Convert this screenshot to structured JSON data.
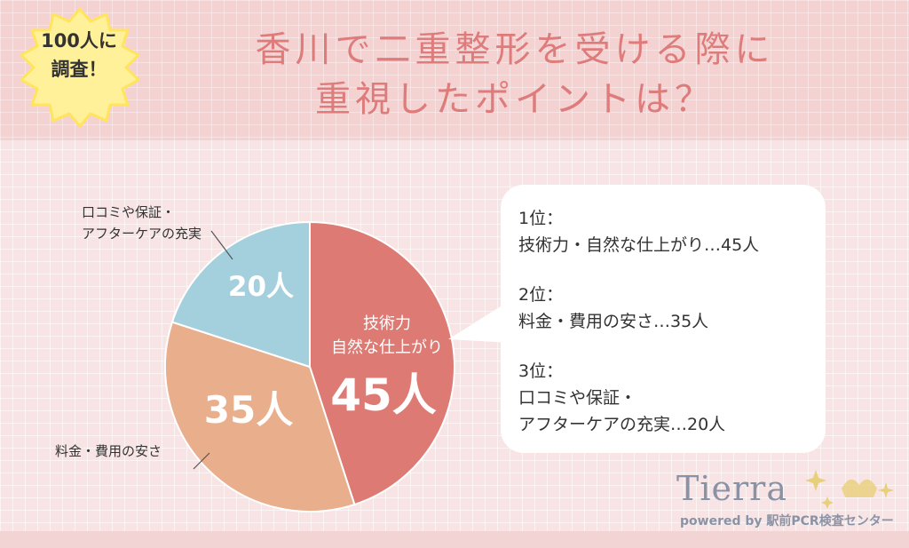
{
  "badge": {
    "line1": "100人に",
    "line2": "調査！"
  },
  "title": {
    "line1": "香川で二重整形を受ける際に",
    "line2": "重視したポイントは？"
  },
  "chart_data": {
    "type": "pie",
    "total": 100,
    "slices": [
      {
        "label": "技術力・自然な仕上がり",
        "value": 45,
        "value_label": "45人",
        "inner_label_1": "技術力",
        "inner_label_2": "自然な仕上がり",
        "color": "#dd7a74"
      },
      {
        "label": "料金・費用の安さ",
        "value": 35,
        "value_label": "35人",
        "outer_label": "料金・費用の安さ",
        "color": "#e9ae8c"
      },
      {
        "label": "口コミや保証・アフターケアの充実",
        "value": 20,
        "value_label": "20人",
        "outer_label_1": "口コミや保証・",
        "outer_label_2": "アフターケアの充実",
        "color": "#a4d0dd"
      }
    ]
  },
  "ranking": [
    {
      "rank": "1位：",
      "text1": "技術力・自然な仕上がり…45人"
    },
    {
      "rank": "2位：",
      "text1": "料金・費用の安さ…35人"
    },
    {
      "rank": "3位：",
      "text1": "口コミや保証・",
      "text2": "アフターケアの充実…20人"
    }
  ],
  "logo": {
    "name": "Tierra",
    "sub": "powered by 駅前PCR検査センター"
  }
}
